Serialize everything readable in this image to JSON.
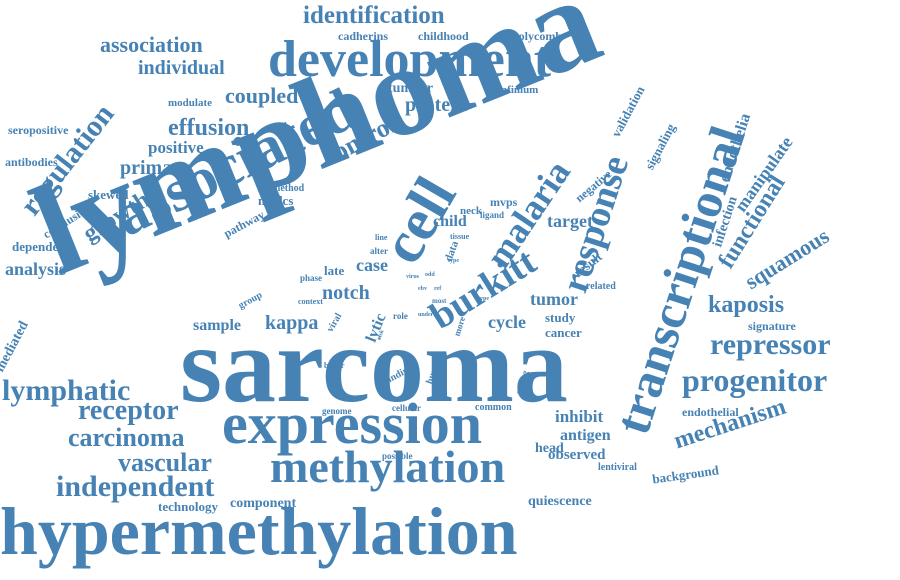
{
  "cloud": {
    "color": "#4682b4",
    "words": [
      "lymphoma",
      "sarcoma",
      "hypermethylation",
      "expression",
      "associated",
      "development",
      "methylation",
      "transcriptional",
      "response",
      "burkitt",
      "cell",
      "malaria",
      "identification",
      "association",
      "individual",
      "coupled",
      "protein",
      "effusion",
      "regulation",
      "growth",
      "primary",
      "positive",
      "control",
      "tumour",
      "infinium",
      "cadherins",
      "childhood",
      "polycomb",
      "validation",
      "signaling",
      "endothelia",
      "manipulate",
      "functional",
      "infection",
      "squamous",
      "kaposis",
      "repressor",
      "progenitor",
      "mechanism",
      "endothelial",
      "signature",
      "background",
      "lentiviral",
      "quiescence",
      "technology",
      "component",
      "independent",
      "vascular",
      "carcinoma",
      "receptor",
      "lymphatic",
      "mediated",
      "sample",
      "kappa",
      "notch",
      "tumor",
      "cycle",
      "study",
      "cancer",
      "analysis",
      "dependent",
      "pathway",
      "conclusion",
      "skewed",
      "antibodies",
      "seropositive",
      "modulate",
      "modcs",
      "method",
      "child",
      "mvps",
      "target",
      "negative",
      "ligand",
      "tissue",
      "neck",
      "data",
      "result",
      "related",
      "case",
      "late",
      "phase",
      "alter",
      "line",
      "group",
      "context",
      "viral",
      "lytic",
      "role",
      "finding",
      "human",
      "more",
      "most",
      "better",
      "genome",
      "cellular",
      "common",
      "possible",
      "head",
      "strong",
      "observed",
      "antigen",
      "inhibit",
      "virus",
      "odd",
      "ebv",
      "ref",
      "type",
      "risk",
      "type",
      "under"
    ]
  }
}
